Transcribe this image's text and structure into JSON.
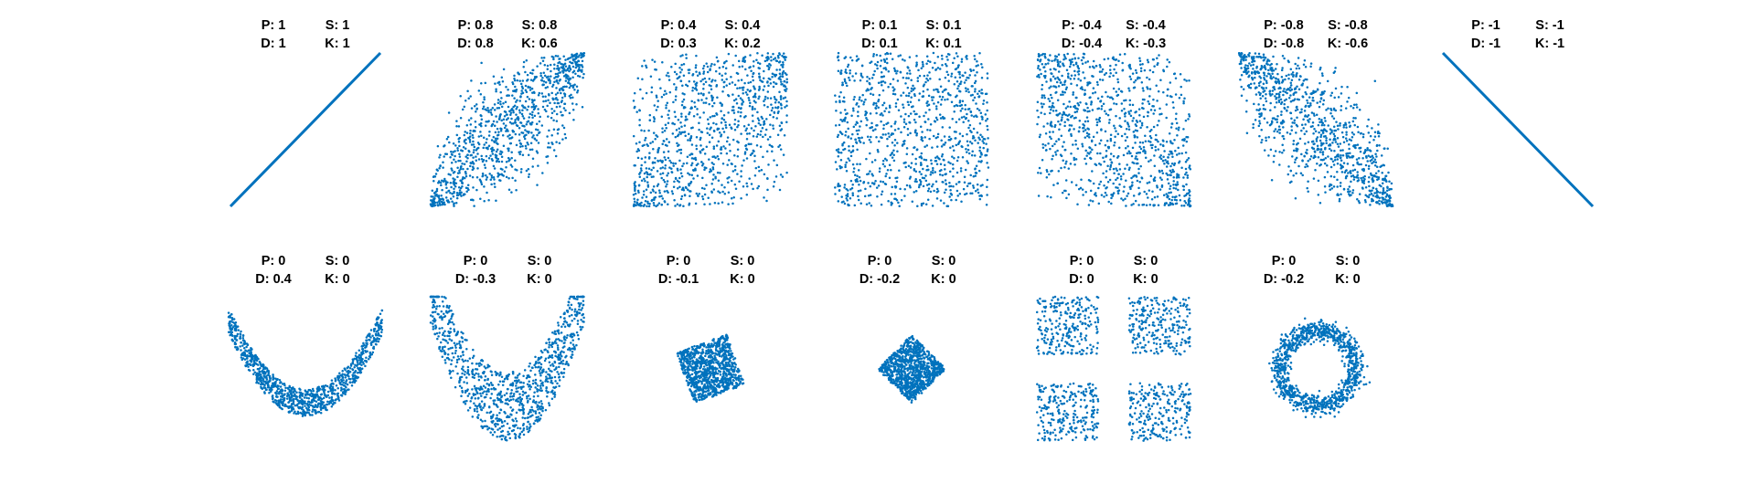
{
  "theme": {
    "dot_color": "#0072BD",
    "background": "#FFFFFF"
  },
  "chart_data": {
    "type": "scatter",
    "grid": false,
    "axes_visible": false,
    "points_per_panel": "approximately 1000",
    "panels": [
      {
        "row": 1,
        "shape": "line-up",
        "stats": {
          "P": "1",
          "S": "1",
          "D": "1",
          "K": "1"
        },
        "x_range": [
          0,
          1
        ],
        "y_range": [
          0,
          1
        ]
      },
      {
        "row": 1,
        "shape": "scatter-corr-0.8",
        "stats": {
          "P": "0.8",
          "S": "0.8",
          "D": "0.8",
          "K": "0.6"
        },
        "x_range": [
          0,
          1
        ],
        "y_range": [
          0,
          1
        ]
      },
      {
        "row": 1,
        "shape": "scatter-corr-0.4",
        "stats": {
          "P": "0.4",
          "S": "0.4",
          "D": "0.3",
          "K": "0.2"
        },
        "x_range": [
          0,
          1
        ],
        "y_range": [
          0,
          1
        ]
      },
      {
        "row": 1,
        "shape": "scatter-corr-0.1",
        "stats": {
          "P": "0.1",
          "S": "0.1",
          "D": "0.1",
          "K": "0.1"
        },
        "x_range": [
          0,
          1
        ],
        "y_range": [
          0,
          1
        ]
      },
      {
        "row": 1,
        "shape": "scatter-corr--0.4",
        "stats": {
          "P": "-0.4",
          "S": "-0.4",
          "D": "-0.4",
          "K": "-0.3"
        },
        "x_range": [
          0,
          1
        ],
        "y_range": [
          0,
          1
        ]
      },
      {
        "row": 1,
        "shape": "scatter-corr--0.8",
        "stats": {
          "P": "-0.8",
          "S": "-0.8",
          "D": "-0.8",
          "K": "-0.6"
        },
        "x_range": [
          0,
          1
        ],
        "y_range": [
          0,
          1
        ]
      },
      {
        "row": 1,
        "shape": "line-down",
        "stats": {
          "P": "-1",
          "S": "-1",
          "D": "-1",
          "K": "-1"
        },
        "x_range": [
          0,
          1
        ],
        "y_range": [
          0,
          1
        ]
      },
      {
        "row": 2,
        "shape": "parabola-narrow",
        "stats": {
          "P": "0",
          "S": "0",
          "D": "0.4",
          "K": "0"
        },
        "x_range": [
          -1,
          1
        ],
        "y_range": [
          0,
          1
        ]
      },
      {
        "row": 2,
        "shape": "parabola-wide",
        "stats": {
          "P": "0",
          "S": "0",
          "D": "-0.3",
          "K": "0"
        },
        "x_range": [
          -1,
          1
        ],
        "y_range": [
          -0.6,
          1.05
        ]
      },
      {
        "row": 2,
        "shape": "rotated-square",
        "stats": {
          "P": "0",
          "S": "0",
          "D": "-0.1",
          "K": "0"
        },
        "x_range": [
          -1,
          1
        ],
        "y_range": [
          -1,
          1
        ]
      },
      {
        "row": 2,
        "shape": "diamond",
        "stats": {
          "P": "0",
          "S": "0",
          "D": "-0.2",
          "K": "0"
        },
        "x_range": [
          -1,
          1
        ],
        "y_range": [
          -1,
          1
        ]
      },
      {
        "row": 2,
        "shape": "four-clusters",
        "stats": {
          "P": "0",
          "S": "0",
          "D": "0",
          "K": "0"
        },
        "x_range": [
          -1,
          1
        ],
        "y_range": [
          -1,
          1
        ]
      },
      {
        "row": 2,
        "shape": "ring",
        "stats": {
          "P": "0",
          "S": "0",
          "D": "-0.2",
          "K": "0"
        },
        "x_range": [
          -1,
          1
        ],
        "y_range": [
          -1,
          1
        ]
      }
    ]
  }
}
